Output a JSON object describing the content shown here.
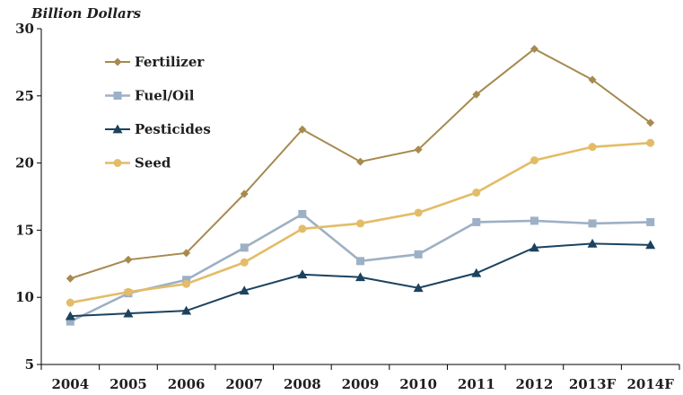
{
  "chart_data": {
    "type": "line",
    "title": "",
    "xlabel": "",
    "ylabel": "Billion Dollars",
    "x": [
      "2004",
      "2005",
      "2006",
      "2007",
      "2008",
      "2009",
      "2010",
      "2011",
      "2012",
      "2013F",
      "2014F"
    ],
    "ylim": [
      5,
      30
    ],
    "yticks": [
      5,
      10,
      15,
      20,
      25,
      30
    ],
    "grid": false,
    "legend_position": "top-left",
    "series": [
      {
        "name": "Fertilizer",
        "color": "#a68a4f",
        "marker": "diamond",
        "values": [
          11.4,
          12.8,
          13.3,
          17.7,
          22.5,
          20.1,
          21.0,
          25.1,
          28.5,
          26.2,
          23.0
        ]
      },
      {
        "name": "Fuel/Oil",
        "color": "#9db0c5",
        "marker": "square",
        "values": [
          8.2,
          10.3,
          11.3,
          13.7,
          16.2,
          12.7,
          13.2,
          15.6,
          15.7,
          15.5,
          15.6
        ]
      },
      {
        "name": "Pesticides",
        "color": "#1b425f",
        "marker": "triangle",
        "values": [
          8.6,
          8.8,
          9.0,
          10.5,
          11.7,
          11.5,
          10.7,
          11.8,
          13.7,
          14.0,
          13.9
        ]
      },
      {
        "name": "Seed",
        "color": "#e3bc67",
        "marker": "circle",
        "values": [
          9.6,
          10.4,
          11.0,
          12.6,
          15.1,
          15.5,
          16.3,
          17.8,
          20.2,
          21.2,
          21.5
        ]
      }
    ]
  }
}
